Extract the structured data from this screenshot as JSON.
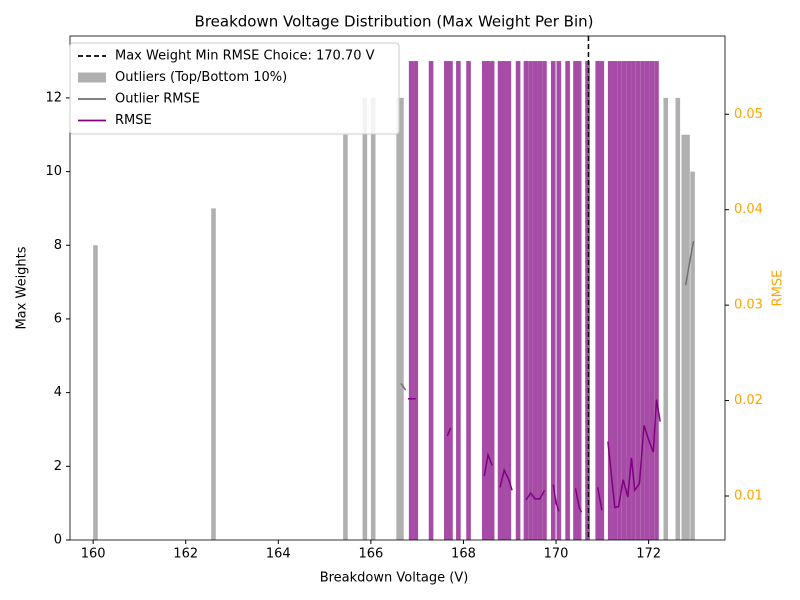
{
  "chart_data": {
    "type": "bar",
    "title": "Breakdown Voltage Distribution (Max Weight Per Bin)",
    "x_label": "Breakdown Voltage (V)",
    "y_label": "Max Weights",
    "y2_label": "RMSE",
    "y2_color": "#ffa500",
    "xlim": [
      159.5,
      173.65
    ],
    "xticks": [
      160,
      162,
      164,
      166,
      168,
      170,
      172
    ],
    "ylim": [
      0,
      13.68
    ],
    "yticks": [
      0,
      2,
      4,
      6,
      8,
      10,
      12
    ],
    "y2lim": [
      0.00539,
      0.0582
    ],
    "y2ticks": [
      0.01,
      0.02,
      0.03,
      0.04,
      0.05
    ],
    "legend": "upper left",
    "vline": {
      "x": 170.7,
      "label": "Max Weight Min RMSE Choice: 170.70 V",
      "color": "#000000"
    },
    "series": [
      {
        "name": "Outliers (Top/Bottom 10%)",
        "type": "bar",
        "color": "#b0b0b0",
        "x": [
          160.05,
          162.6,
          165.45,
          165.87,
          166.05,
          166.6,
          166.66,
          172.37,
          172.63,
          172.76,
          172.84,
          172.95
        ],
        "values": [
          8,
          9,
          11,
          12,
          12,
          12,
          12,
          12,
          12,
          11,
          11,
          10
        ]
      },
      {
        "type": "bar",
        "color": "#a64ca6",
        "x": [
          166.87,
          166.97,
          167.3,
          167.63,
          167.72,
          167.89,
          168.11,
          168.45,
          168.53,
          168.62,
          168.79,
          168.88,
          168.98,
          169.18,
          169.35,
          169.45,
          169.55,
          169.65,
          169.75,
          169.94,
          170.06,
          170.25,
          170.42,
          170.5,
          170.68,
          170.9,
          170.99,
          171.17,
          171.27,
          171.37,
          171.47,
          171.57,
          171.67,
          171.77,
          171.87,
          171.97,
          172.07,
          172.17
        ],
        "values": [
          13,
          13,
          13,
          13,
          13,
          13,
          13,
          13,
          13,
          13,
          13,
          13,
          13,
          13,
          13,
          13,
          13,
          13,
          13,
          13,
          13,
          13,
          13,
          13,
          13,
          13,
          13,
          13,
          13,
          13,
          13,
          13,
          13,
          13,
          13,
          13,
          13,
          13
        ]
      },
      {
        "name": "Outlier RMSE",
        "type": "line",
        "axis": "y2",
        "color": "#6e6e6e",
        "x": [
          166.65,
          166.75,
          172.0,
          172.8,
          172.9,
          172.97
        ],
        "values": [
          0.0218,
          0.0211,
          null,
          0.0321,
          0.0349,
          0.0367
        ]
      },
      {
        "name": "RMSE",
        "type": "line",
        "axis": "y2",
        "color": "#800080",
        "x": [
          166.8,
          166.97,
          167.3,
          167.65,
          167.72,
          168.2,
          168.45,
          168.53,
          168.62,
          168.7,
          168.79,
          168.88,
          168.98,
          169.05,
          169.2,
          169.35,
          169.45,
          169.55,
          169.65,
          169.75,
          169.85,
          169.94,
          170.0,
          170.06,
          170.3,
          170.42,
          170.5,
          170.55,
          170.8,
          170.9,
          170.99,
          171.05,
          171.12,
          171.27,
          171.35,
          171.45,
          171.55,
          171.63,
          171.7,
          171.8,
          171.9,
          172.0,
          172.1,
          172.17,
          172.25
        ],
        "values": [
          0.0202,
          0.0202,
          null,
          0.0163,
          0.0171,
          null,
          0.0121,
          0.0143,
          0.0132,
          null,
          0.0109,
          0.0127,
          0.0117,
          0.0106,
          null,
          0.0096,
          0.0103,
          0.0097,
          0.0097,
          0.0106,
          null,
          0.0112,
          0.0093,
          0.0084,
          null,
          0.0108,
          0.0088,
          0.0083,
          null,
          0.0109,
          0.0085,
          null,
          0.0157,
          0.0088,
          0.0089,
          0.0117,
          0.0099,
          0.014,
          0.0106,
          0.0113,
          0.0174,
          0.0159,
          0.0146,
          0.0201,
          0.0178
        ]
      }
    ]
  }
}
